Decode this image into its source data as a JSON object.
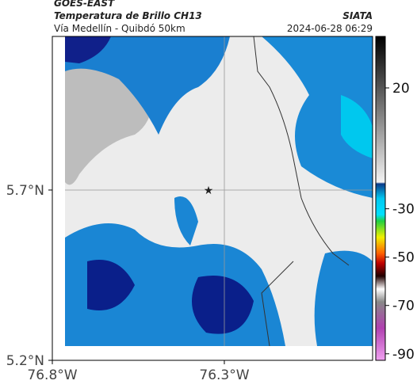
{
  "header": {
    "source": "GOES-EAST",
    "title": "Temperatura de Brillo CH13",
    "subtitle": "Vía Medellín - Quibdó 50km",
    "agency": "SIATA",
    "timestamp": "2024-06-28 06:29"
  },
  "map": {
    "lat_lim": [
      5.2,
      6.151
    ],
    "lon_lim": [
      -76.8,
      -75.869
    ],
    "lat_ticks": [
      {
        "value": 5.7,
        "label": "5.7°N"
      },
      {
        "value": 5.2,
        "label": "5.2°N"
      }
    ],
    "lon_ticks": [
      {
        "value": -76.8,
        "label": "76.8°W"
      },
      {
        "value": -76.3,
        "label": "76.3°W"
      }
    ]
  },
  "colorbar": {
    "lim": [
      -92.7,
      41.3
    ],
    "ticks": [
      20,
      -30,
      -50,
      -70,
      -90
    ]
  }
}
